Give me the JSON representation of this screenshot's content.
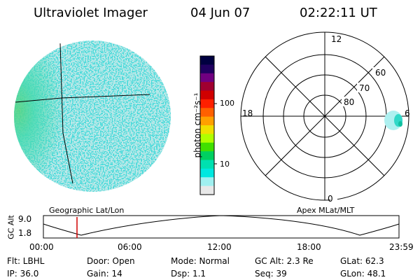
{
  "header": {
    "title": "Ultraviolet Imager",
    "date": "04 Jun 07",
    "time": "02:22:11 UT"
  },
  "colorbar": {
    "unit_label": "photon cm⁻²s⁻¹",
    "ticks": [
      "100",
      "10"
    ],
    "colors": [
      "#000040",
      "#200060",
      "#700080",
      "#a00030",
      "#d00000",
      "#ff2000",
      "#ff6000",
      "#ffa000",
      "#f0e000",
      "#b0ff00",
      "#40e000",
      "#00d060",
      "#00e0b0",
      "#00e8e0",
      "#a0f0f0",
      "#e8e8e8"
    ]
  },
  "polar_plot": {
    "mlt_labels": {
      "top": "12",
      "left": "18",
      "right": "6",
      "bottom": "0"
    },
    "lat_labels": [
      "60",
      "70",
      "80"
    ]
  },
  "orbit_plot": {
    "left_title": "Geographic Lat/Lon",
    "right_title": "Apex MLat/MLT",
    "ylabel": "GC Alt",
    "ymax": "9.0",
    "ymin": "1.8",
    "time_ticks": [
      "00:00",
      "06:00",
      "12:00",
      "18:00",
      "23:59"
    ],
    "marker_color": "#d00000"
  },
  "info": {
    "flt": "Flt: LBHL",
    "ip": "IP: 36.0",
    "door": "Door: Open",
    "gain": "Gain: 14",
    "mode": "Mode: Normal",
    "dsp": "Dsp:     1.1",
    "gcalt": "GC Alt: 2.3 Re",
    "seq": "Seq: 39",
    "glat": "GLat:   62.3",
    "glon": "GLon:   48.1"
  }
}
